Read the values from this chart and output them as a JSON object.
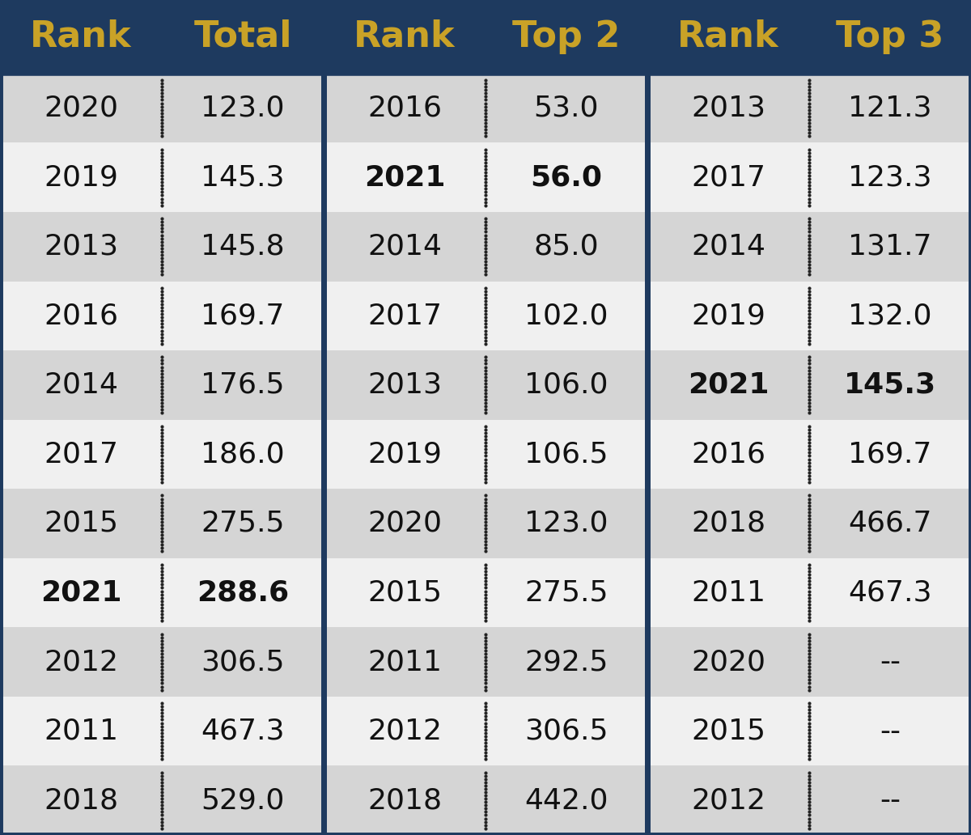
{
  "header_bg": "#1e3a5f",
  "header_text_color": "#c9a227",
  "header_font_size": 32,
  "row_color_odd": "#d5d5d5",
  "row_color_even": "#f0f0f0",
  "cell_text_color": "#111111",
  "divider_color": "#222222",
  "table_border_color": "#1e3a5f",
  "sections": [
    {
      "headers": [
        "Rank",
        "Total"
      ],
      "rows": [
        [
          "2020",
          "123.0",
          false
        ],
        [
          "2019",
          "145.3",
          false
        ],
        [
          "2013",
          "145.8",
          false
        ],
        [
          "2016",
          "169.7",
          false
        ],
        [
          "2014",
          "176.5",
          false
        ],
        [
          "2017",
          "186.0",
          false
        ],
        [
          "2015",
          "275.5",
          false
        ],
        [
          "2021",
          "288.6",
          true
        ],
        [
          "2012",
          "306.5",
          false
        ],
        [
          "2011",
          "467.3",
          false
        ],
        [
          "2018",
          "529.0",
          false
        ]
      ]
    },
    {
      "headers": [
        "Rank",
        "Top 2"
      ],
      "rows": [
        [
          "2016",
          "53.0",
          false
        ],
        [
          "2021",
          "56.0",
          true
        ],
        [
          "2014",
          "85.0",
          false
        ],
        [
          "2017",
          "102.0",
          false
        ],
        [
          "2013",
          "106.0",
          false
        ],
        [
          "2019",
          "106.5",
          false
        ],
        [
          "2020",
          "123.0",
          false
        ],
        [
          "2015",
          "275.5",
          false
        ],
        [
          "2011",
          "292.5",
          false
        ],
        [
          "2012",
          "306.5",
          false
        ],
        [
          "2018",
          "442.0",
          false
        ]
      ]
    },
    {
      "headers": [
        "Rank",
        "Top 3"
      ],
      "rows": [
        [
          "2013",
          "121.3",
          false
        ],
        [
          "2017",
          "123.3",
          false
        ],
        [
          "2014",
          "131.7",
          false
        ],
        [
          "2019",
          "132.0",
          false
        ],
        [
          "2021",
          "145.3",
          true
        ],
        [
          "2016",
          "169.7",
          false
        ],
        [
          "2018",
          "466.7",
          false
        ],
        [
          "2011",
          "467.3",
          false
        ],
        [
          "2020",
          "--",
          false
        ],
        [
          "2015",
          "--",
          false
        ],
        [
          "2012",
          "--",
          false
        ]
      ]
    }
  ],
  "fig_width": 12.0,
  "fig_height": 10.32,
  "dpi": 100
}
